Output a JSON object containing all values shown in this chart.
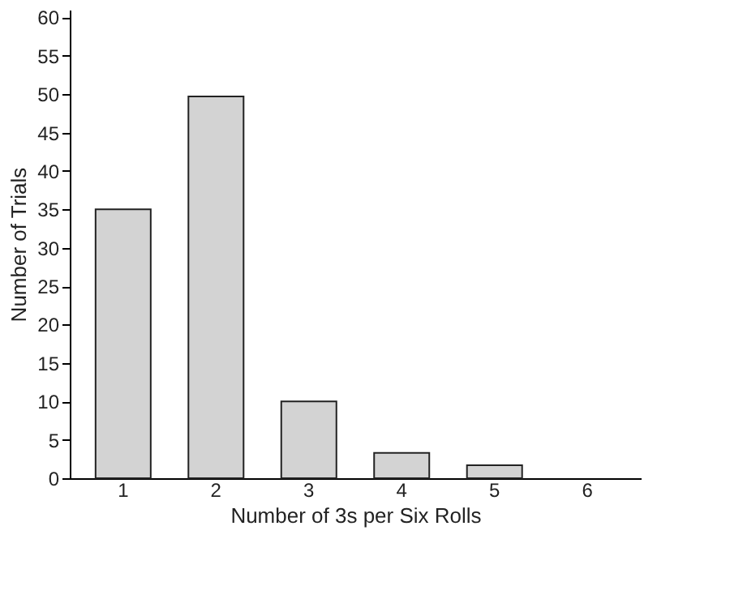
{
  "chart_data": {
    "type": "bar",
    "xlabel": "Number of 3s per Six Rolls",
    "ylabel": "Number of Trials",
    "categories": [
      "1",
      "2",
      "3",
      "4",
      "5",
      "6"
    ],
    "values": [
      35,
      49.7,
      10,
      3.3,
      1.7,
      0
    ],
    "color": "#d3d3d3",
    "ylim": [
      0,
      61
    ],
    "yticks": [
      0,
      5,
      10,
      15,
      20,
      25,
      30,
      35,
      40,
      45,
      50,
      55,
      60
    ],
    "grid": false
  }
}
